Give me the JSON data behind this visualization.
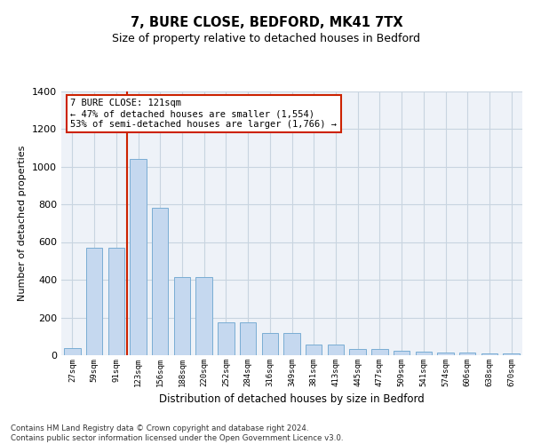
{
  "title": "7, BURE CLOSE, BEDFORD, MK41 7TX",
  "subtitle": "Size of property relative to detached houses in Bedford",
  "xlabel": "Distribution of detached houses by size in Bedford",
  "ylabel": "Number of detached properties",
  "categories": [
    "27sqm",
    "59sqm",
    "91sqm",
    "123sqm",
    "156sqm",
    "188sqm",
    "220sqm",
    "252sqm",
    "284sqm",
    "316sqm",
    "349sqm",
    "381sqm",
    "413sqm",
    "445sqm",
    "477sqm",
    "509sqm",
    "541sqm",
    "574sqm",
    "606sqm",
    "638sqm",
    "670sqm"
  ],
  "values": [
    40,
    570,
    570,
    1040,
    780,
    415,
    415,
    175,
    175,
    120,
    120,
    55,
    55,
    35,
    35,
    25,
    20,
    15,
    15,
    10,
    10
  ],
  "bar_color": "#c5d8ef",
  "bar_edge_color": "#7aadd4",
  "red_line_x": 2.5,
  "red_line_color": "#cc2200",
  "annotation_text": "7 BURE CLOSE: 121sqm\n← 47% of detached houses are smaller (1,554)\n53% of semi-detached houses are larger (1,766) →",
  "annotation_box_facecolor": "#ffffff",
  "annotation_box_edgecolor": "#cc2200",
  "ylim": [
    0,
    1400
  ],
  "yticks": [
    0,
    200,
    400,
    600,
    800,
    1000,
    1200,
    1400
  ],
  "grid_color": "#c8d4e0",
  "plot_bg_color": "#eef2f8",
  "fig_bg_color": "#ffffff",
  "footnote": "Contains HM Land Registry data © Crown copyright and database right 2024.\nContains public sector information licensed under the Open Government Licence v3.0."
}
